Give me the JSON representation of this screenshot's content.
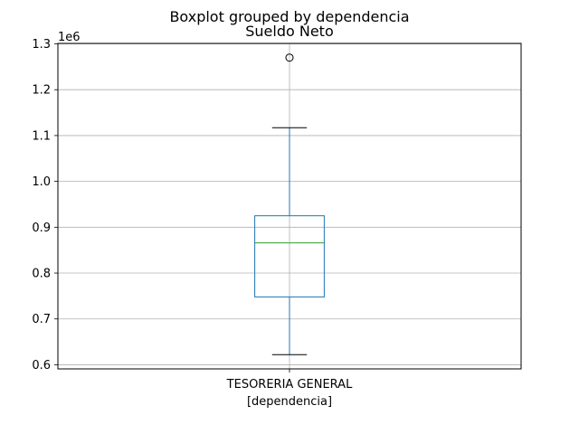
{
  "chart_data": {
    "type": "boxplot",
    "suptitle": "Boxplot grouped by dependencia",
    "title": "Sueldo Neto",
    "xlabel": "[dependencia]",
    "ylabel": "",
    "offset_label": "1e6",
    "categories": [
      "TESORERIA GENERAL"
    ],
    "boxes": [
      {
        "category": "TESORERIA GENERAL",
        "whisker_low": 0.622,
        "q1": 0.748,
        "median": 0.866,
        "q3": 0.925,
        "whisker_high": 1.117,
        "outliers": [
          1.27
        ]
      }
    ],
    "ylim": [
      0.591,
      1.301
    ],
    "yticks": [
      0.6,
      0.7,
      0.8,
      0.9,
      1.0,
      1.1,
      1.2,
      1.3
    ],
    "ytick_labels": [
      "0.6",
      "0.7",
      "0.8",
      "0.9",
      "1.0",
      "1.1",
      "1.2",
      "1.3"
    ],
    "grid": true,
    "colors": {
      "box": "#1f77b4",
      "median": "#2ca02c",
      "grid": "#b0b0b0",
      "outlier": "#000000"
    }
  }
}
